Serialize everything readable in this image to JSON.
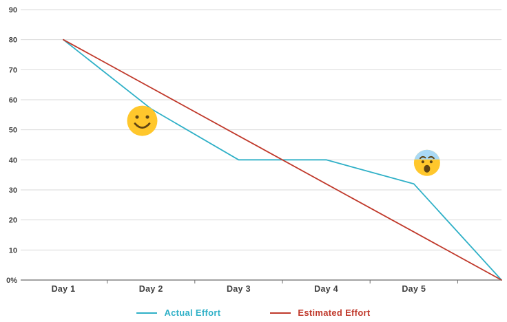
{
  "chart_data": {
    "type": "line",
    "title": "",
    "categories": [
      "Day 1",
      "Day 2",
      "Day 3",
      "Day 4",
      "Day 5",
      ""
    ],
    "series": [
      {
        "name": "Actual Effort",
        "color": "#2FB0C7",
        "values": [
          80,
          57,
          40,
          40,
          32,
          0
        ]
      },
      {
        "name": "Estimated Effort",
        "color": "#C0392B",
        "values": [
          80,
          64,
          48,
          32,
          16,
          0
        ]
      }
    ],
    "y_ticks": [
      "90",
      "80",
      "70",
      "60",
      "50",
      "40",
      "30",
      "20",
      "10",
      "0%"
    ],
    "ylim": [
      0,
      90
    ],
    "xlabel": "",
    "ylabel": "",
    "grid": true,
    "legend_position": "bottom",
    "annotations": [
      {
        "name": "happy-face-emoji",
        "x_index": 0.9,
        "value": 53
      },
      {
        "name": "anxious-face-emoji",
        "x_index": 4.15,
        "value": 39
      }
    ],
    "style": {
      "grid_color": "#d9d9d9",
      "axis_color": "#6b6b6b",
      "text_color": "#3f3f3f",
      "emoji_face_color": "#FFC72C",
      "emoji_feature_color": "#5f4413",
      "emoji_sweat_color": "#A9D9F5"
    }
  }
}
